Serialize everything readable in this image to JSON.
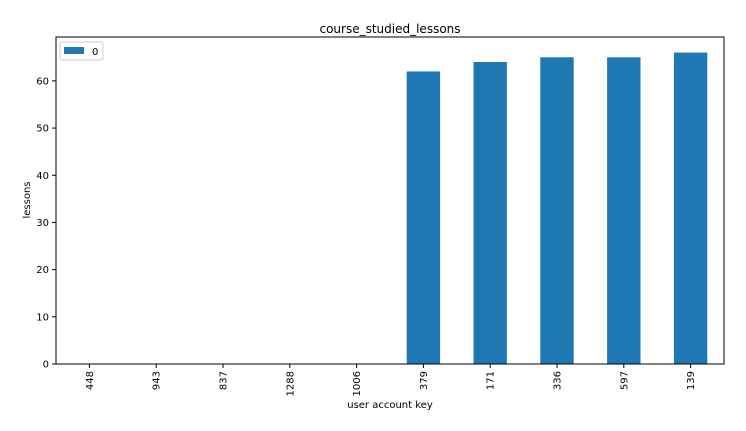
{
  "chart_data": {
    "type": "bar",
    "title": "course_studied_lessons",
    "xlabel": "user account key",
    "ylabel": "lessons",
    "categories": [
      "448",
      "943",
      "837",
      "1288",
      "1006",
      "379",
      "171",
      "336",
      "597",
      "139"
    ],
    "series": [
      {
        "name": "0",
        "values": [
          0,
          0,
          0,
          0,
          0,
          62,
          64,
          65,
          65,
          66
        ]
      }
    ],
    "ylim": [
      0,
      69.3
    ],
    "yticks": [
      0,
      10,
      20,
      30,
      40,
      50,
      60
    ],
    "grid": false,
    "legend_position": "top-left",
    "colors": {
      "bar": "#1f77b4"
    }
  }
}
